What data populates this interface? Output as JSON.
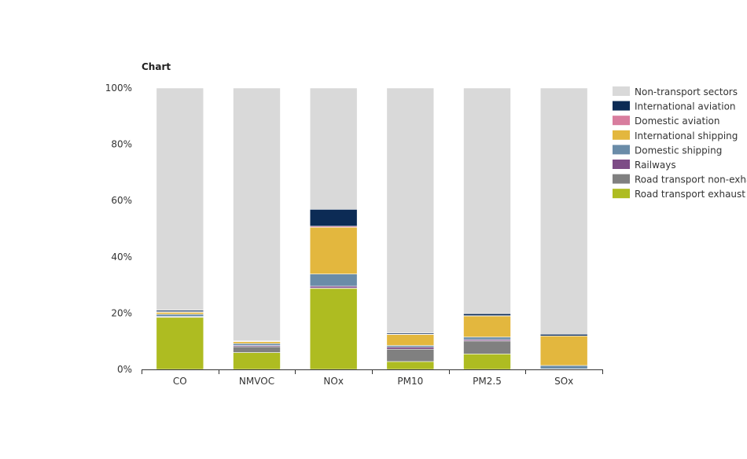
{
  "chart_data": {
    "type": "bar",
    "stacked": true,
    "title": "Chart",
    "categories": [
      "CO",
      "NMVOC",
      "NOx",
      "PM10",
      "PM2.5",
      "SOx"
    ],
    "y_ticks": [
      "0%",
      "20%",
      "40%",
      "60%",
      "80%",
      "100%"
    ],
    "ylim": [
      0,
      100
    ],
    "legend_position": "right",
    "series": [
      {
        "name": "Road transport exhaust",
        "color": "#aebc21",
        "values": [
          18.5,
          6,
          28.8,
          2.8,
          5.5,
          0.1
        ]
      },
      {
        "name": "Road transport non-exhaust",
        "color": "#808080",
        "values": [
          0.1,
          2.1,
          0.1,
          4.4,
          4.6,
          0
        ]
      },
      {
        "name": "Railways",
        "color": "#7d4c86",
        "values": [
          0.2,
          0.4,
          0.7,
          0.7,
          0.5,
          0.1
        ]
      },
      {
        "name": "Domestic shipping",
        "color": "#6a8ca8",
        "values": [
          0.8,
          0.7,
          4.3,
          0.6,
          0.9,
          1.2
        ]
      },
      {
        "name": "International shipping",
        "color": "#e3b73e",
        "values": [
          0.7,
          0.7,
          16.6,
          3.9,
          7.5,
          10.5
        ]
      },
      {
        "name": "Domestic aviation",
        "color": "#d87d9e",
        "values": [
          0.2,
          0.1,
          0.4,
          0.1,
          0.1,
          0
        ]
      },
      {
        "name": "International aviation",
        "color": "#0c2b55",
        "values": [
          0.5,
          0.2,
          6,
          0.4,
          0.7,
          0.6
        ]
      },
      {
        "name": "Non-transport sectors",
        "color": "#d9d9d9",
        "values": [
          79,
          89.8,
          43.1,
          87.1,
          80.2,
          87.5
        ]
      }
    ]
  }
}
